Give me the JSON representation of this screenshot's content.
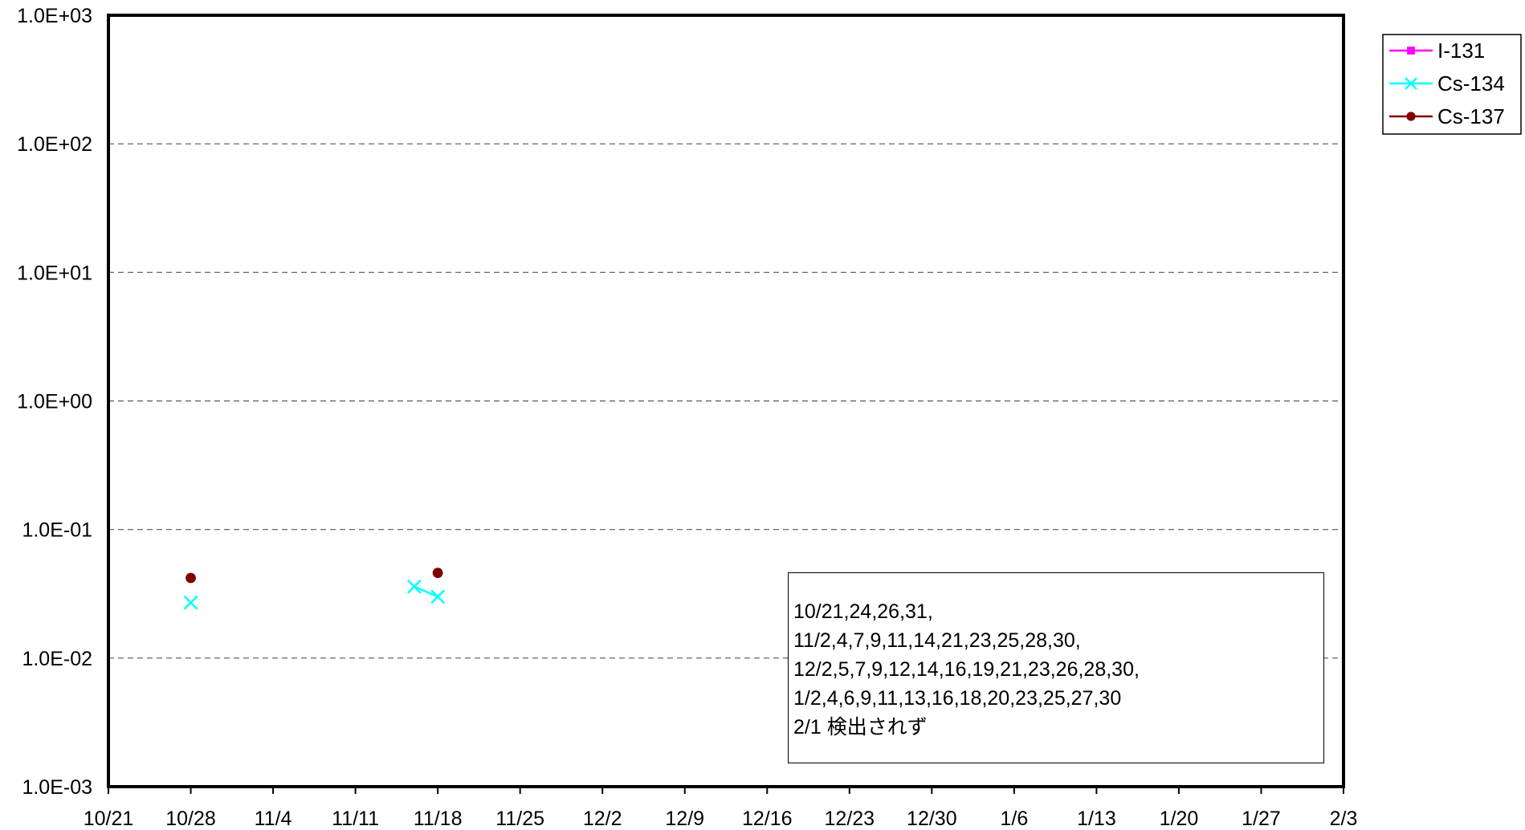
{
  "chart_data": {
    "type": "scatter",
    "title": "",
    "xlabel": "",
    "ylabel": "",
    "y_scale": "log",
    "ylim": [
      0.001,
      1000
    ],
    "y_ticks": [
      0.001,
      0.01,
      0.1,
      1,
      10,
      100,
      1000
    ],
    "y_tick_labels": [
      "1.0E-03",
      "1.0E-02",
      "1.0E-01",
      "1.0E+00",
      "1.0E+01",
      "1.0E+02",
      "1.0E+03"
    ],
    "xlim": [
      "10/21",
      "2/3"
    ],
    "x_tick_labels": [
      "10/21",
      "10/28",
      "11/4",
      "11/11",
      "11/18",
      "11/25",
      "12/2",
      "12/9",
      "12/16",
      "12/23",
      "12/30",
      "1/6",
      "1/13",
      "1/20",
      "1/27",
      "2/3"
    ],
    "grid": "horizontal-dashed",
    "legend_position": "right-top",
    "series": [
      {
        "name": "I-131",
        "color": "#ff00ff",
        "marker": "square",
        "points": []
      },
      {
        "name": "Cs-134",
        "color": "#00ffff",
        "marker": "x",
        "points": [
          {
            "x": "10/28",
            "y": 0.027
          },
          {
            "x": "11/16",
            "y": 0.036
          },
          {
            "x": "11/18",
            "y": 0.03
          }
        ]
      },
      {
        "name": "Cs-137",
        "color": "#800000",
        "marker": "circle",
        "points": [
          {
            "x": "10/28",
            "y": 0.042
          },
          {
            "x": "11/18",
            "y": 0.046
          }
        ]
      }
    ],
    "annotation": {
      "lines": [
        "10/21,24,26,31,",
        "11/2,4,7,9,11,14,21,23,25,28,30,",
        "12/2,5,7,9,12,14,16,19,21,23,26,28,30,",
        "1/2,4,6,9,11,13,16,18,20,23,25,27,30",
        "2/1 検出されず"
      ]
    }
  }
}
